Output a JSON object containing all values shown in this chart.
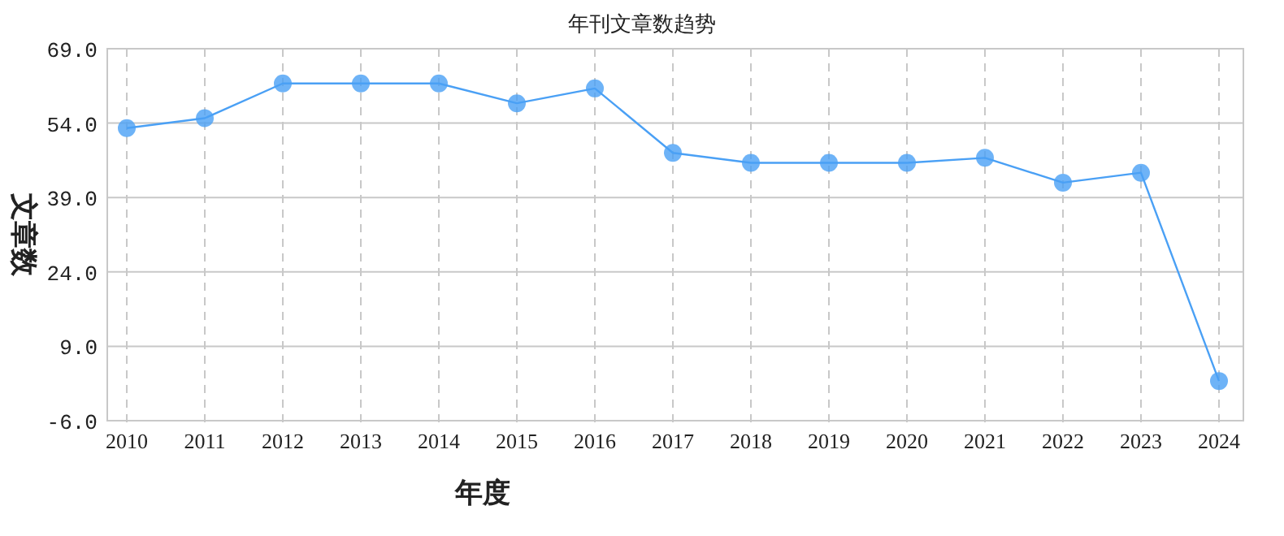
{
  "chart_data": {
    "type": "line",
    "title": "年刊文章数趋势",
    "xlabel": "年度",
    "ylabel": "文章数",
    "categories": [
      "2010",
      "2011",
      "2012",
      "2013",
      "2014",
      "2015",
      "2016",
      "2017",
      "2018",
      "2019",
      "2020",
      "2021",
      "2022",
      "2023",
      "2024"
    ],
    "series": [
      {
        "color": "#4aa0f5",
        "values": [
          53,
          55,
          62,
          62,
          62,
          58,
          61,
          48,
          46,
          46,
          46,
          47,
          42,
          44,
          2
        ]
      }
    ],
    "ylim": [
      -6,
      69
    ],
    "yticks": [
      {
        "value": -6,
        "label": "-6.0"
      },
      {
        "value": 9,
        "label": "9.0"
      },
      {
        "value": 24,
        "label": "24.0"
      },
      {
        "value": 39,
        "label": "39.0"
      },
      {
        "value": 54,
        "label": "54.0"
      },
      {
        "value": 69,
        "label": "69.0"
      }
    ],
    "grid": true,
    "marker": "circle",
    "line_style": "solid"
  }
}
